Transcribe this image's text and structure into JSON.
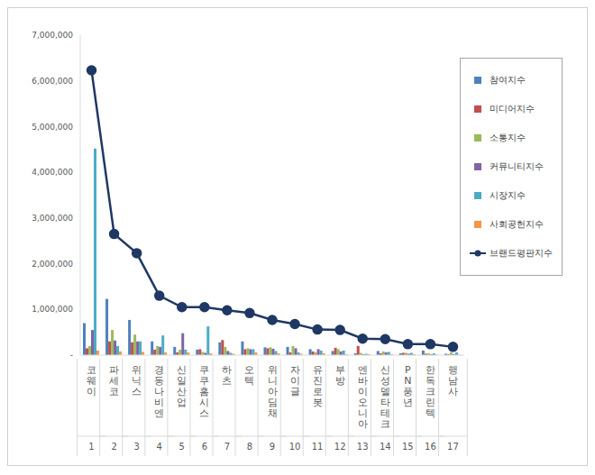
{
  "chart_data": {
    "type": "bar",
    "categories": [
      "코웨이",
      "파세코",
      "위닉스",
      "경동나비엔",
      "신일산업",
      "쿠쿠홈시스",
      "하츠",
      "오텍",
      "위니아딤채",
      "자이글",
      "유진로봇",
      "부방",
      "엔바이오니아",
      "신성델타테크",
      "PN풍년",
      "한독크린텍",
      "행남사"
    ],
    "ranks": [
      1,
      2,
      3,
      4,
      5,
      6,
      7,
      8,
      9,
      10,
      11,
      12,
      13,
      14,
      15,
      16,
      17
    ],
    "series": [
      {
        "name": "참여지수",
        "type": "bar",
        "color": "#4f81bd",
        "values": [
          700000,
          1230000,
          770000,
          300000,
          180000,
          120000,
          280000,
          300000,
          170000,
          180000,
          130000,
          90000,
          40000,
          90000,
          40000,
          100000,
          30000
        ]
      },
      {
        "name": "미디어지수",
        "type": "bar",
        "color": "#c0504d",
        "values": [
          150000,
          300000,
          280000,
          120000,
          60000,
          130000,
          330000,
          130000,
          150000,
          60000,
          80000,
          160000,
          200000,
          40000,
          50000,
          30000,
          20000
        ]
      },
      {
        "name": "소통지수",
        "type": "bar",
        "color": "#9bbb59",
        "values": [
          200000,
          550000,
          450000,
          200000,
          120000,
          70000,
          180000,
          150000,
          170000,
          200000,
          60000,
          130000,
          50000,
          80000,
          50000,
          40000,
          60000
        ]
      },
      {
        "name": "커뮤니티지수",
        "type": "bar",
        "color": "#8064a2",
        "values": [
          550000,
          320000,
          300000,
          180000,
          480000,
          50000,
          90000,
          130000,
          140000,
          150000,
          130000,
          80000,
          20000,
          60000,
          30000,
          20000,
          20000
        ]
      },
      {
        "name": "시장지수",
        "type": "bar",
        "color": "#4bacc6",
        "values": [
          4520000,
          200000,
          300000,
          430000,
          120000,
          630000,
          50000,
          130000,
          90000,
          60000,
          100000,
          100000,
          30000,
          70000,
          50000,
          40000,
          60000
        ]
      },
      {
        "name": "사회공헌지수",
        "type": "bar",
        "color": "#f79646",
        "values": [
          100000,
          80000,
          70000,
          60000,
          60000,
          40000,
          30000,
          60000,
          40000,
          30000,
          40000,
          20000,
          20000,
          20000,
          20000,
          10000,
          10000
        ]
      },
      {
        "name": "브랜드평판지수",
        "type": "line",
        "color": "#1f3864",
        "marker": "circle",
        "values": [
          6230000,
          2650000,
          2230000,
          1300000,
          1050000,
          1050000,
          980000,
          920000,
          770000,
          680000,
          560000,
          550000,
          360000,
          350000,
          240000,
          240000,
          180000
        ]
      }
    ],
    "ylim": [
      0,
      7000000
    ],
    "yticks": [
      {
        "value": 0,
        "label": "-"
      },
      {
        "value": 1000000,
        "label": "1,000,000"
      },
      {
        "value": 2000000,
        "label": "2,000,000"
      },
      {
        "value": 3000000,
        "label": "3,000,000"
      },
      {
        "value": 4000000,
        "label": "4,000,000"
      },
      {
        "value": 5000000,
        "label": "5,000,000"
      },
      {
        "value": 6000000,
        "label": "6,000,000"
      },
      {
        "value": 7000000,
        "label": "7,000,000"
      }
    ],
    "grid": false,
    "legend": "upper right"
  }
}
